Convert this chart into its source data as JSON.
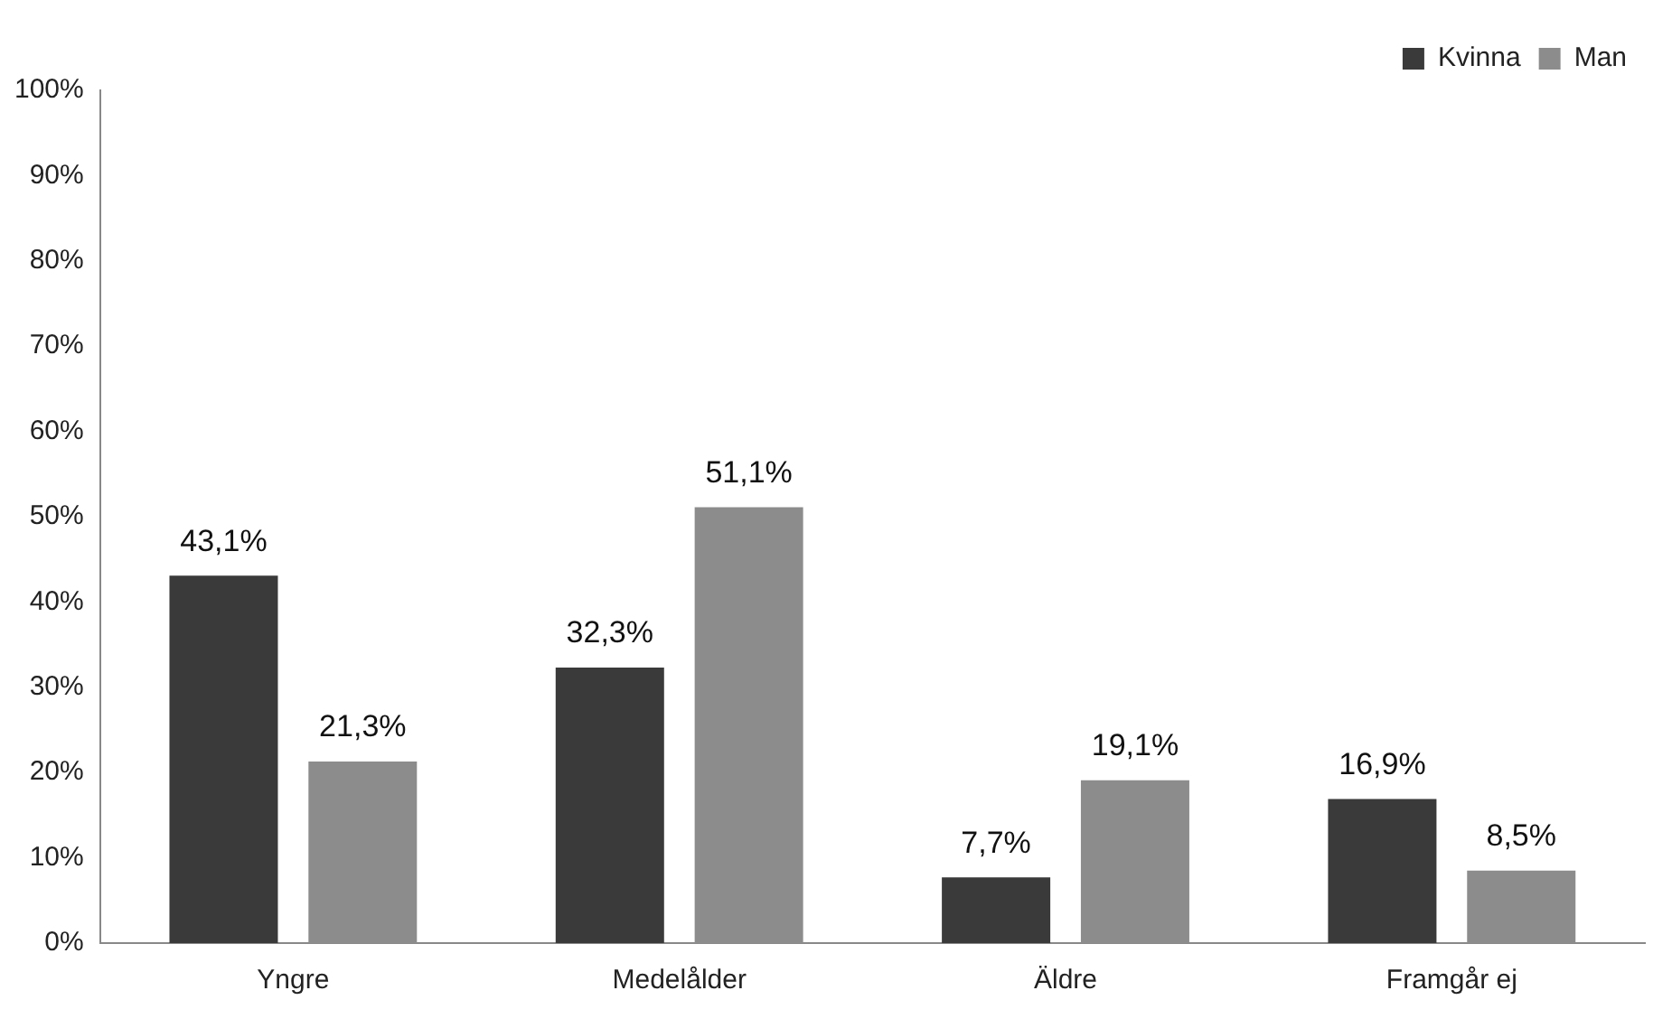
{
  "chart_data": {
    "type": "bar",
    "categories": [
      "Yngre",
      "Medelålder",
      "Äldre",
      "Framgår ej"
    ],
    "series": [
      {
        "name": "Kvinna",
        "color": "#3a3a3a",
        "values": [
          43.1,
          32.3,
          7.7,
          16.9
        ],
        "value_labels": [
          "43,1%",
          "32,3%",
          "7,7%",
          "16,9%"
        ]
      },
      {
        "name": "Man",
        "color": "#8c8c8c",
        "values": [
          21.3,
          51.1,
          19.1,
          8.5
        ],
        "value_labels": [
          "21,3%",
          "51,1%",
          "19,1%",
          "8,5%"
        ]
      }
    ],
    "ylim": [
      0,
      100
    ],
    "yticks": [
      {
        "value": 0,
        "label": "0%"
      },
      {
        "value": 10,
        "label": "10%"
      },
      {
        "value": 20,
        "label": "20%"
      },
      {
        "value": 30,
        "label": "30%"
      },
      {
        "value": 40,
        "label": "40%"
      },
      {
        "value": 50,
        "label": "50%"
      },
      {
        "value": 60,
        "label": "60%"
      },
      {
        "value": 70,
        "label": "70%"
      },
      {
        "value": 80,
        "label": "80%"
      },
      {
        "value": 90,
        "label": "90%"
      },
      {
        "value": 100,
        "label": "100%"
      }
    ],
    "grid": false,
    "legend": "top right"
  }
}
